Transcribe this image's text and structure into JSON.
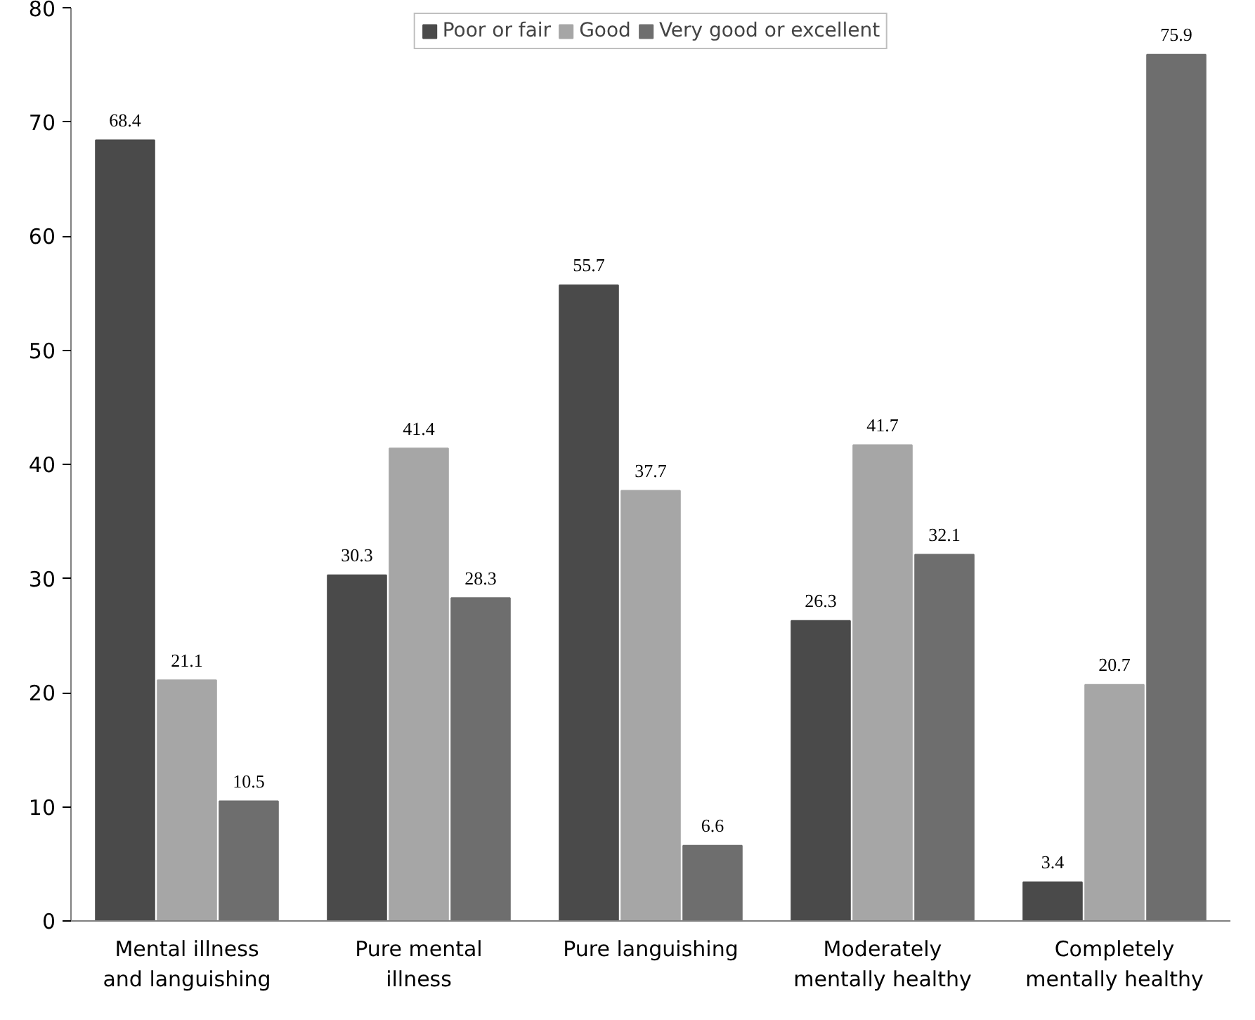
{
  "chart_data": {
    "type": "bar",
    "categories": [
      "Mental illness and languishing",
      "Pure mental illness",
      "Pure languishing",
      "Moderately mentally healthy",
      "Completely mentally healthy"
    ],
    "series": [
      {
        "name": "Poor or fair",
        "color": "#4a4a4a",
        "values": [
          68.4,
          30.3,
          55.7,
          26.3,
          3.4
        ]
      },
      {
        "name": "Good",
        "color": "#a6a6a6",
        "values": [
          21.1,
          41.4,
          37.7,
          41.7,
          20.7
        ]
      },
      {
        "name": "Very good or excellent",
        "color": "#6e6e6e",
        "values": [
          10.5,
          28.3,
          6.6,
          32.1,
          75.9
        ]
      }
    ],
    "ylim": [
      0,
      80
    ],
    "yticks": [
      0,
      10,
      20,
      30,
      40,
      50,
      60,
      70,
      80
    ],
    "grid": false,
    "legend": "top",
    "data_labels": true
  }
}
